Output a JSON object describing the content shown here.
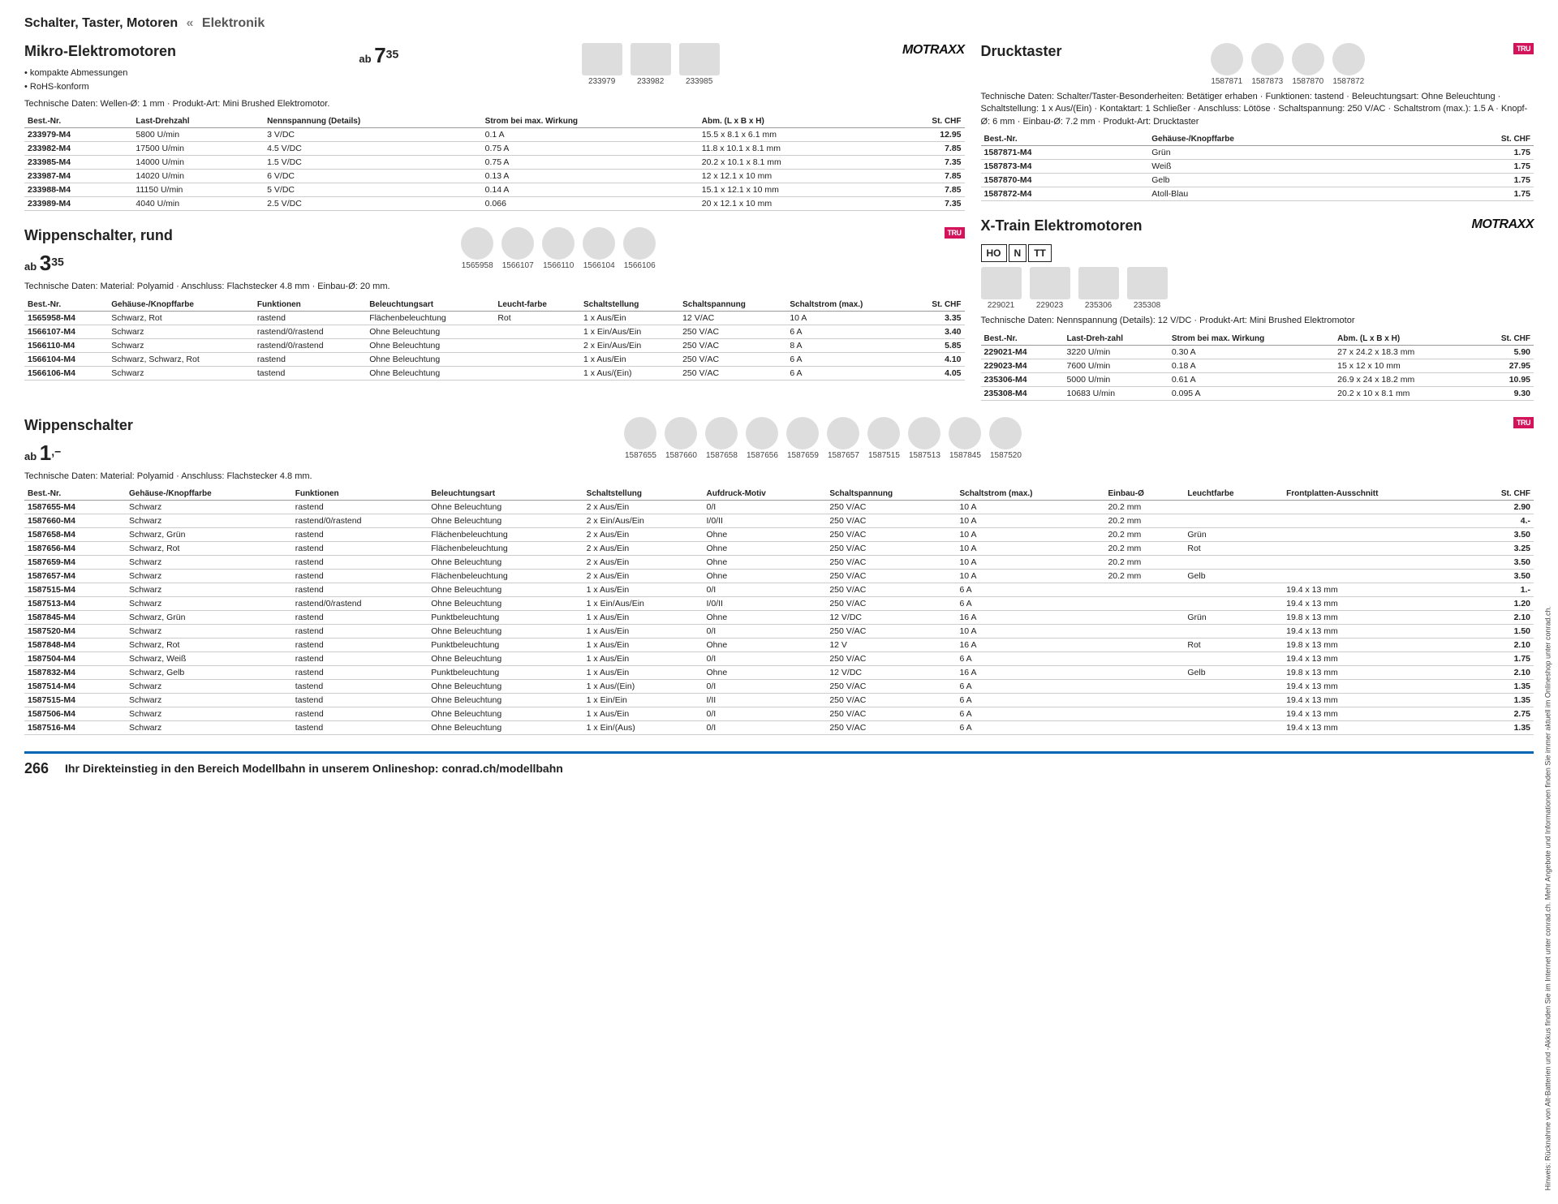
{
  "breadcrumb": {
    "category": "Schalter, Taster, Motoren",
    "sep": "«",
    "parent": "Elektronik"
  },
  "brands": {
    "motraxx": "MOTRAXX",
    "tru": "TRU"
  },
  "micro": {
    "title": "Mikro-Elektromotoren",
    "features": [
      "kompakte Abmessungen",
      "RoHS-konform"
    ],
    "price_prefix": "ab",
    "price_int": "7",
    "price_dec": "35",
    "thumbs": [
      {
        "id": "233979"
      },
      {
        "id": "233982"
      },
      {
        "id": "233985"
      }
    ],
    "tech": "Technische Daten: Wellen-Ø: 1 mm · Produkt-Art: Mini Brushed Elektromotor.",
    "cols": [
      "Best.-Nr.",
      "Last-Drehzahl",
      "Nennspannung (Details)",
      "Strom bei max. Wirkung",
      "Abm. (L x B x H)",
      "St. CHF"
    ],
    "rows": [
      [
        "233979-M4",
        "5800 U/min",
        "3 V/DC",
        "0.1 A",
        "15.5 x 8.1 x 6.1 mm",
        "12.95"
      ],
      [
        "233982-M4",
        "17500 U/min",
        "4.5 V/DC",
        "0.75 A",
        "11.8 x 10.1 x 8.1 mm",
        "7.85"
      ],
      [
        "233985-M4",
        "14000 U/min",
        "1.5 V/DC",
        "0.75 A",
        "20.2 x 10.1 x 8.1 mm",
        "7.35"
      ],
      [
        "233987-M4",
        "14020 U/min",
        "6 V/DC",
        "0.13 A",
        "12 x 12.1 x 10 mm",
        "7.85"
      ],
      [
        "233988-M4",
        "11150 U/min",
        "5 V/DC",
        "0.14 A",
        "15.1 x 12.1 x 10 mm",
        "7.85"
      ],
      [
        "233989-M4",
        "4040 U/min",
        "2.5 V/DC",
        "0.066",
        "20 x 12.1 x 10 mm",
        "7.35"
      ]
    ]
  },
  "rocker_round": {
    "title": "Wippenschalter, rund",
    "price_prefix": "ab",
    "price_int": "3",
    "price_dec": "35",
    "thumbs": [
      {
        "id": "1565958",
        "c": "red"
      },
      {
        "id": "1566107",
        "c": "black"
      },
      {
        "id": "1566110",
        "c": "black"
      },
      {
        "id": "1566104",
        "c": "black"
      },
      {
        "id": "1566106",
        "c": "black"
      }
    ],
    "tech": "Technische Daten: Material: Polyamid · Anschluss: Flachstecker 4.8 mm · Einbau-Ø: 20 mm.",
    "cols": [
      "Best.-Nr.",
      "Gehäuse-/Knopffarbe",
      "Funktionen",
      "Beleuchtungsart",
      "Leucht-farbe",
      "Schaltstellung",
      "Schaltspannung",
      "Schaltstrom (max.)",
      "St. CHF"
    ],
    "rows": [
      [
        "1565958-M4",
        "Schwarz, Rot",
        "rastend",
        "Flächenbeleuchtung",
        "Rot",
        "1 x Aus/Ein",
        "12 V/AC",
        "10 A",
        "3.35"
      ],
      [
        "1566107-M4",
        "Schwarz",
        "rastend/0/rastend",
        "Ohne Beleuchtung",
        "",
        "1 x Ein/Aus/Ein",
        "250 V/AC",
        "6 A",
        "3.40"
      ],
      [
        "1566110-M4",
        "Schwarz",
        "rastend/0/rastend",
        "Ohne Beleuchtung",
        "",
        "2 x Ein/Aus/Ein",
        "250 V/AC",
        "8 A",
        "5.85"
      ],
      [
        "1566104-M4",
        "Schwarz, Schwarz, Rot",
        "rastend",
        "Ohne Beleuchtung",
        "",
        "1 x Aus/Ein",
        "250 V/AC",
        "6 A",
        "4.10"
      ],
      [
        "1566106-M4",
        "Schwarz",
        "tastend",
        "Ohne Beleuchtung",
        "",
        "1 x Aus/(Ein)",
        "250 V/AC",
        "6 A",
        "4.05"
      ]
    ]
  },
  "push": {
    "title": "Drucktaster",
    "thumbs": [
      {
        "id": "1587871",
        "c": "green"
      },
      {
        "id": "1587873",
        "c": "black"
      },
      {
        "id": "1587870",
        "c": "yel"
      },
      {
        "id": "1587872",
        "c": "blue"
      }
    ],
    "tech": "Technische Daten: Schalter/Taster-Besonderheiten: Betätiger erhaben · Funktionen: tastend · Beleuchtungsart: Ohne Beleuchtung · Schaltstellung: 1 x Aus/(Ein) · Kontaktart: 1 Schließer · Anschluss: Lötöse · Schaltspannung: 250 V/AC · Schaltstrom (max.): 1.5 A · Knopf-Ø: 6 mm · Einbau-Ø: 7.2 mm · Produkt-Art: Drucktaster",
    "cols": [
      "Best.-Nr.",
      "Gehäuse-/Knopffarbe",
      "St. CHF"
    ],
    "rows": [
      [
        "1587871-M4",
        "Grün",
        "1.75"
      ],
      [
        "1587873-M4",
        "Weiß",
        "1.75"
      ],
      [
        "1587870-M4",
        "Gelb",
        "1.75"
      ],
      [
        "1587872-M4",
        "Atoll-Blau",
        "1.75"
      ]
    ]
  },
  "xtrain": {
    "title": "X-Train Elektromotoren",
    "scales": [
      "HO",
      "N",
      "TT"
    ],
    "thumbs": [
      {
        "id": "229021"
      },
      {
        "id": "229023"
      },
      {
        "id": "235306"
      },
      {
        "id": "235308"
      }
    ],
    "tech": "Technische Daten: Nennspannung (Details): 12 V/DC · Produkt-Art: Mini Brushed Elektromotor",
    "cols": [
      "Best.-Nr.",
      "Last-Dreh-zahl",
      "Strom bei max. Wirkung",
      "Abm. (L x B x H)",
      "St. CHF"
    ],
    "rows": [
      [
        "229021-M4",
        "3220 U/min",
        "0.30 A",
        "27 x 24.2 x 18.3 mm",
        "5.90"
      ],
      [
        "229023-M4",
        "7600 U/min",
        "0.18 A",
        "15 x 12 x 10 mm",
        "27.95"
      ],
      [
        "235306-M4",
        "5000 U/min",
        "0.61 A",
        "26.9 x 24 x 18.2 mm",
        "10.95"
      ],
      [
        "235308-M4",
        "10683 U/min",
        "0.095 A",
        "20.2 x 10 x 8.1 mm",
        "9.30"
      ]
    ]
  },
  "rocker": {
    "title": "Wippenschalter",
    "price_prefix": "ab",
    "price_int": "1",
    "price_dec": ",−",
    "thumbs": [
      {
        "id": "1587655",
        "c": "black"
      },
      {
        "id": "1587660",
        "c": "black"
      },
      {
        "id": "1587658",
        "c": "green"
      },
      {
        "id": "1587656",
        "c": "red"
      },
      {
        "id": "1587659",
        "c": "black"
      },
      {
        "id": "1587657",
        "c": "orange"
      },
      {
        "id": "1587515",
        "c": "black"
      },
      {
        "id": "1587513",
        "c": "black"
      },
      {
        "id": "1587845",
        "c": "black"
      },
      {
        "id": "1587520",
        "c": "black"
      }
    ],
    "tech": "Technische Daten: Material: Polyamid · Anschluss: Flachstecker 4.8 mm.",
    "cols": [
      "Best.-Nr.",
      "Gehäuse-/Knopffarbe",
      "Funktionen",
      "Beleuchtungsart",
      "Schaltstellung",
      "Aufdruck-Motiv",
      "Schaltspannung",
      "Schaltstrom (max.)",
      "Einbau-Ø",
      "Leuchtfarbe",
      "Frontplatten-Ausschnitt",
      "St. CHF"
    ],
    "rows": [
      [
        "1587655-M4",
        "Schwarz",
        "rastend",
        "Ohne Beleuchtung",
        "2 x Aus/Ein",
        "0/I",
        "250 V/AC",
        "10 A",
        "20.2 mm",
        "",
        "",
        "2.90"
      ],
      [
        "1587660-M4",
        "Schwarz",
        "rastend/0/rastend",
        "Ohne Beleuchtung",
        "2 x Ein/Aus/Ein",
        "I/0/II",
        "250 V/AC",
        "10 A",
        "20.2 mm",
        "",
        "",
        "4.-"
      ],
      [
        "1587658-M4",
        "Schwarz, Grün",
        "rastend",
        "Flächenbeleuchtung",
        "2 x Aus/Ein",
        "Ohne",
        "250 V/AC",
        "10 A",
        "20.2 mm",
        "Grün",
        "",
        "3.50"
      ],
      [
        "1587656-M4",
        "Schwarz, Rot",
        "rastend",
        "Flächenbeleuchtung",
        "2 x Aus/Ein",
        "Ohne",
        "250 V/AC",
        "10 A",
        "20.2 mm",
        "Rot",
        "",
        "3.25"
      ],
      [
        "1587659-M4",
        "Schwarz",
        "rastend",
        "Ohne Beleuchtung",
        "2 x Aus/Ein",
        "Ohne",
        "250 V/AC",
        "10 A",
        "20.2 mm",
        "",
        "",
        "3.50"
      ],
      [
        "1587657-M4",
        "Schwarz",
        "rastend",
        "Flächenbeleuchtung",
        "2 x Aus/Ein",
        "Ohne",
        "250 V/AC",
        "10 A",
        "20.2 mm",
        "Gelb",
        "",
        "3.50"
      ],
      [
        "1587515-M4",
        "Schwarz",
        "rastend",
        "Ohne Beleuchtung",
        "1 x Aus/Ein",
        "0/I",
        "250 V/AC",
        "6 A",
        "",
        "",
        "19.4 x 13 mm",
        "1.-"
      ],
      [
        "1587513-M4",
        "Schwarz",
        "rastend/0/rastend",
        "Ohne Beleuchtung",
        "1 x Ein/Aus/Ein",
        "I/0/II",
        "250 V/AC",
        "6 A",
        "",
        "",
        "19.4 x 13 mm",
        "1.20"
      ],
      [
        "1587845-M4",
        "Schwarz, Grün",
        "rastend",
        "Punktbeleuchtung",
        "1 x Aus/Ein",
        "Ohne",
        "12 V/DC",
        "16 A",
        "",
        "Grün",
        "19.8 x 13 mm",
        "2.10"
      ],
      [
        "1587520-M4",
        "Schwarz",
        "rastend",
        "Ohne Beleuchtung",
        "1 x Aus/Ein",
        "0/I",
        "250 V/AC",
        "10 A",
        "",
        "",
        "19.4 x 13 mm",
        "1.50"
      ],
      [
        "1587848-M4",
        "Schwarz, Rot",
        "rastend",
        "Punktbeleuchtung",
        "1 x Aus/Ein",
        "Ohne",
        "12 V",
        "16 A",
        "",
        "Rot",
        "19.8 x 13 mm",
        "2.10"
      ],
      [
        "1587504-M4",
        "Schwarz, Weiß",
        "rastend",
        "Ohne Beleuchtung",
        "1 x Aus/Ein",
        "0/I",
        "250 V/AC",
        "6 A",
        "",
        "",
        "19.4 x 13 mm",
        "1.75"
      ],
      [
        "1587832-M4",
        "Schwarz, Gelb",
        "rastend",
        "Punktbeleuchtung",
        "1 x Aus/Ein",
        "Ohne",
        "12 V/DC",
        "16 A",
        "",
        "Gelb",
        "19.8 x 13 mm",
        "2.10"
      ],
      [
        "1587514-M4",
        "Schwarz",
        "tastend",
        "Ohne Beleuchtung",
        "1 x Aus/(Ein)",
        "0/I",
        "250 V/AC",
        "6 A",
        "",
        "",
        "19.4 x 13 mm",
        "1.35"
      ],
      [
        "1587515-M4",
        "Schwarz",
        "tastend",
        "Ohne Beleuchtung",
        "1 x Ein/Ein",
        "I/II",
        "250 V/AC",
        "6 A",
        "",
        "",
        "19.4 x 13 mm",
        "1.35"
      ],
      [
        "1587506-M4",
        "Schwarz",
        "rastend",
        "Ohne Beleuchtung",
        "1 x Aus/Ein",
        "0/I",
        "250 V/AC",
        "6 A",
        "",
        "",
        "19.4 x 13 mm",
        "2.75"
      ],
      [
        "1587516-M4",
        "Schwarz",
        "tastend",
        "Ohne Beleuchtung",
        "1 x Ein/(Aus)",
        "0/I",
        "250 V/AC",
        "6 A",
        "",
        "",
        "19.4 x 13 mm",
        "1.35"
      ]
    ]
  },
  "footer": {
    "page": "266",
    "text": "Ihr Direkteinstieg in den Bereich Modellbahn in unserem Onlineshop: conrad.ch/modellbahn"
  },
  "side": "Hinweis: Rücknahme von Alt-Batterien und -Akkus finden Sie im Internet unter conrad.ch. Mehr Angebote und Informationen finden Sie immer aktuell im Onlineshop unter conrad.ch."
}
